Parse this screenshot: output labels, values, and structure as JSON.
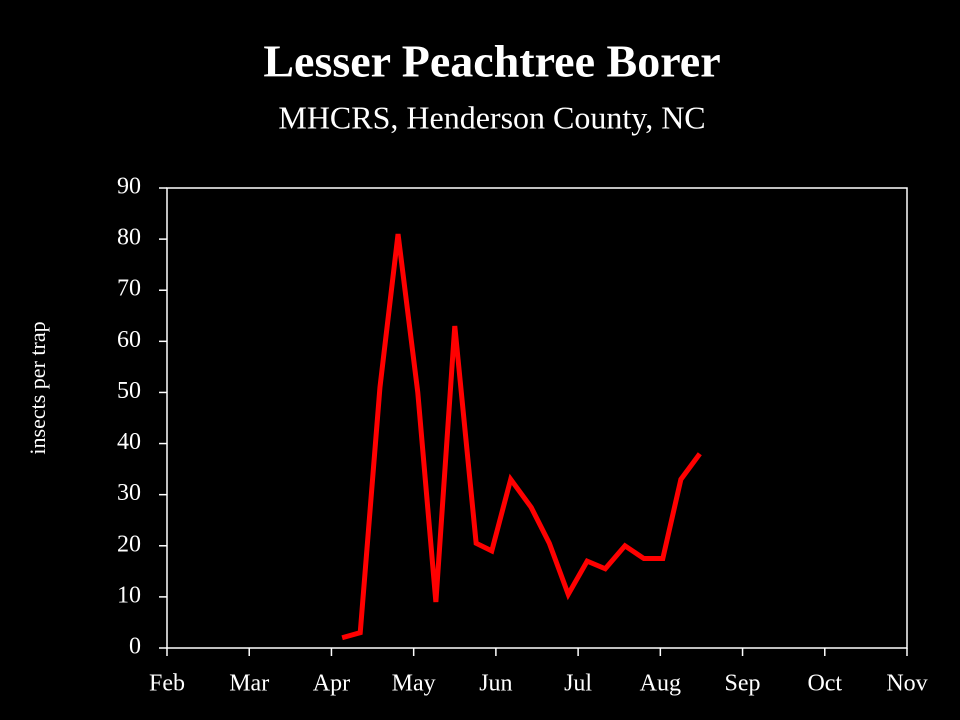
{
  "chart_data": {
    "type": "line",
    "title": "Lesser Peachtree Borer",
    "subtitle": "MHCRS, Henderson County, NC",
    "y_label": "insects per trap",
    "x": [
      2.13,
      2.35,
      2.59,
      2.81,
      3.05,
      3.27,
      3.5,
      3.76,
      3.95,
      4.18,
      4.43,
      4.65,
      4.88,
      5.11,
      5.33,
      5.57,
      5.8,
      6.03,
      6.25,
      6.48
    ],
    "values": [
      2,
      3,
      51,
      81,
      50,
      9,
      63,
      20.5,
      19,
      33,
      27.5,
      20.5,
      10.5,
      17,
      15.5,
      20,
      17.5,
      17.5,
      33,
      38
    ],
    "color": "#ff0000",
    "xlim": [
      0,
      9
    ],
    "xticks": [
      {
        "value": 0,
        "label": "Feb"
      },
      {
        "value": 1,
        "label": "Mar"
      },
      {
        "value": 2,
        "label": "Apr"
      },
      {
        "value": 3,
        "label": "May"
      },
      {
        "value": 4,
        "label": "Jun"
      },
      {
        "value": 5,
        "label": "Jul"
      },
      {
        "value": 6,
        "label": "Aug"
      },
      {
        "value": 7,
        "label": "Sep"
      },
      {
        "value": 8,
        "label": "Oct"
      },
      {
        "value": 9,
        "label": "Nov"
      }
    ],
    "ylim": [
      0,
      90
    ],
    "yticks": [
      0,
      10,
      20,
      30,
      40,
      50,
      60,
      70,
      80,
      90
    ],
    "grid": false
  }
}
